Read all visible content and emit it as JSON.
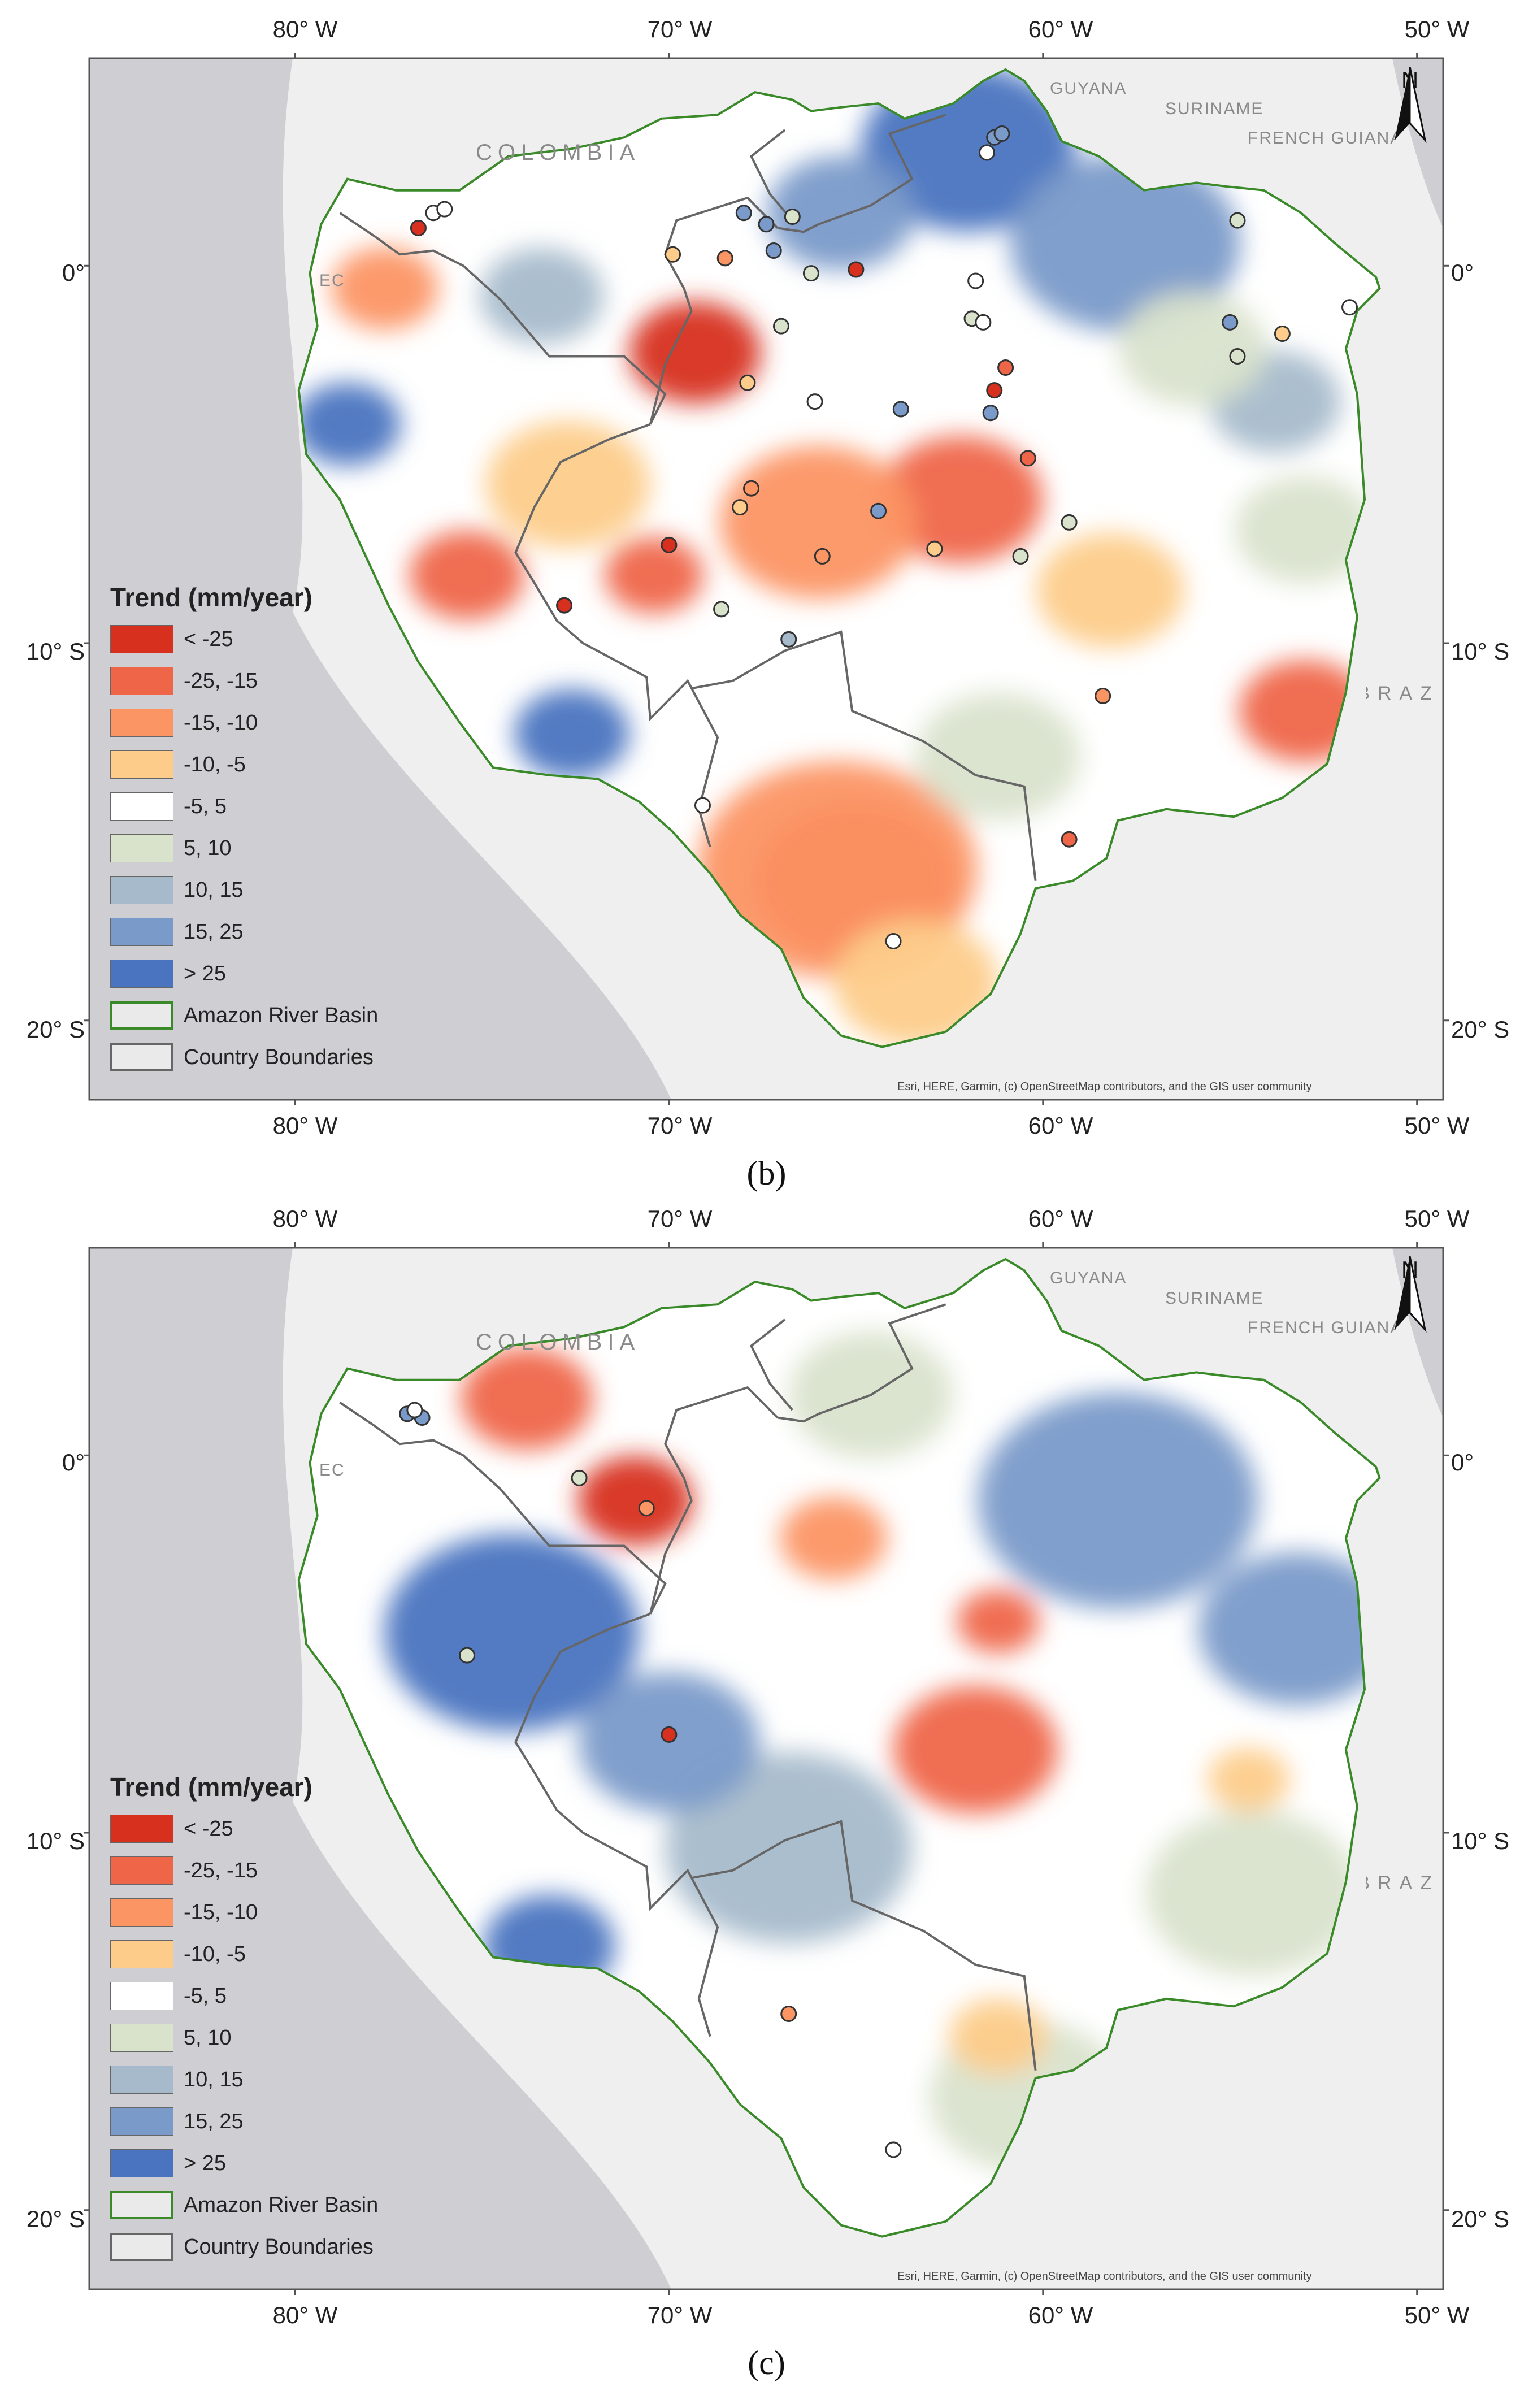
{
  "figure": {
    "panels": [
      {
        "id": "b",
        "caption": "(b)",
        "lon_labels": [
          "80° W",
          "70° W",
          "60° W",
          "50° W"
        ],
        "lat_labels": [
          "0°",
          "10° S",
          "20° S"
        ],
        "country_labels": [
          "COLOMBIA",
          "GUYANA",
          "SURINAME",
          "FRENCH GUIANA",
          "EC",
          "BRAZ"
        ],
        "north_label": "N",
        "attribution": "Esri, HERE, Garmin, (c) OpenStreetMap contributors, and the GIS user community"
      },
      {
        "id": "c",
        "caption": "(c)",
        "lon_labels": [
          "80° W",
          "70° W",
          "60° W",
          "50° W"
        ],
        "lat_labels": [
          "0°",
          "10° S",
          "20° S"
        ],
        "country_labels": [
          "COLOMBIA",
          "GUYANA",
          "SURINAME",
          "FRENCH GUIANA",
          "EC",
          "BRAZ"
        ],
        "north_label": "N",
        "attribution": "Esri, HERE, Garmin, (c) OpenStreetMap contributors, and the GIS user community"
      }
    ]
  },
  "legend": {
    "title": "Trend (mm/year)",
    "classes": [
      {
        "label": "< -25",
        "color": "#d7301f"
      },
      {
        "label": "-25, -15",
        "color": "#ef6548"
      },
      {
        "label": "-15, -10",
        "color": "#fc9564"
      },
      {
        "label": "-10, -5",
        "color": "#fdcc8a"
      },
      {
        "label": "-5, 5",
        "color": "#ffffff"
      },
      {
        "label": "5, 10",
        "color": "#d9e3cc"
      },
      {
        "label": "10, 15",
        "color": "#a7bacb"
      },
      {
        "label": "15, 25",
        "color": "#7a9ac9"
      },
      {
        "label": "> 25",
        "color": "#4a74c0"
      }
    ],
    "basin": {
      "label": "Amazon River Basin",
      "color": "#3a8a2a"
    },
    "boundaries": {
      "label": "Country Boundaries",
      "color": "#666666"
    }
  },
  "map_data": {
    "extent": {
      "lon": [
        -85.5,
        -49.3
      ],
      "lat": [
        5.5,
        -22.1
      ]
    },
    "basin_outline": [
      [
        -79.3,
        1.1
      ],
      [
        -78.6,
        2.3
      ],
      [
        -77.3,
        2.0
      ],
      [
        -75.6,
        2.0
      ],
      [
        -74.3,
        2.9
      ],
      [
        -72.6,
        3.1
      ],
      [
        -71.2,
        3.4
      ],
      [
        -70.2,
        3.9
      ],
      [
        -68.7,
        4.0
      ],
      [
        -67.7,
        4.6
      ],
      [
        -66.7,
        4.4
      ],
      [
        -66.2,
        4.1
      ],
      [
        -65.4,
        4.2
      ],
      [
        -64.4,
        4.3
      ],
      [
        -63.7,
        3.9
      ],
      [
        -62.4,
        4.3
      ],
      [
        -61.6,
        4.9
      ],
      [
        -61.0,
        5.2
      ],
      [
        -60.5,
        4.9
      ],
      [
        -59.9,
        4.1
      ],
      [
        -59.5,
        3.3
      ],
      [
        -58.5,
        2.9
      ],
      [
        -57.3,
        2.0
      ],
      [
        -55.9,
        2.2
      ],
      [
        -55.1,
        2.1
      ],
      [
        -54.1,
        2.0
      ],
      [
        -53.1,
        1.4
      ],
      [
        -52.2,
        0.6
      ],
      [
        -51.1,
        -0.3
      ],
      [
        -51.0,
        -0.6
      ],
      [
        -51.6,
        -1.2
      ],
      [
        -51.9,
        -2.2
      ],
      [
        -51.6,
        -3.4
      ],
      [
        -51.5,
        -4.8
      ],
      [
        -51.4,
        -6.2
      ],
      [
        -51.9,
        -7.8
      ],
      [
        -51.6,
        -9.3
      ],
      [
        -51.9,
        -11.3
      ],
      [
        -52.4,
        -13.2
      ],
      [
        -53.6,
        -14.1
      ],
      [
        -54.9,
        -14.6
      ],
      [
        -56.7,
        -14.4
      ],
      [
        -58.0,
        -14.7
      ],
      [
        -58.3,
        -15.7
      ],
      [
        -59.2,
        -16.3
      ],
      [
        -60.2,
        -16.5
      ],
      [
        -60.6,
        -17.7
      ],
      [
        -61.4,
        -19.3
      ],
      [
        -62.6,
        -20.3
      ],
      [
        -64.3,
        -20.7
      ],
      [
        -65.4,
        -20.4
      ],
      [
        -66.4,
        -19.4
      ],
      [
        -67.0,
        -18.1
      ],
      [
        -68.1,
        -17.2
      ],
      [
        -68.9,
        -16.1
      ],
      [
        -69.9,
        -15.0
      ],
      [
        -70.8,
        -14.2
      ],
      [
        -71.9,
        -13.6
      ],
      [
        -73.2,
        -13.5
      ],
      [
        -74.7,
        -13.3
      ],
      [
        -75.6,
        -12.1
      ],
      [
        -76.7,
        -10.5
      ],
      [
        -77.5,
        -9.0
      ],
      [
        -78.2,
        -7.5
      ],
      [
        -78.8,
        -6.2
      ],
      [
        -79.7,
        -5.0
      ],
      [
        -79.9,
        -3.3
      ],
      [
        -79.4,
        -1.6
      ],
      [
        -79.6,
        -0.2
      ]
    ],
    "country_borders": [
      [
        [
          -78.8,
          1.4
        ],
        [
          -77.9,
          0.8
        ],
        [
          -77.2,
          0.3
        ],
        [
          -76.3,
          0.4
        ],
        [
          -75.5,
          0.0
        ],
        [
          -74.5,
          -0.9
        ],
        [
          -73.2,
          -2.4
        ],
        [
          -71.2,
          -2.4
        ],
        [
          -70.1,
          -3.4
        ],
        [
          -70.5,
          -4.2
        ]
      ],
      [
        [
          -70.5,
          -4.2
        ],
        [
          -71.6,
          -4.6
        ],
        [
          -72.9,
          -5.2
        ],
        [
          -73.6,
          -6.4
        ],
        [
          -74.1,
          -7.6
        ],
        [
          -73.6,
          -8.4
        ],
        [
          -73.0,
          -9.4
        ],
        [
          -72.3,
          -10.0
        ],
        [
          -70.6,
          -10.9
        ],
        [
          -70.5,
          -12.0
        ],
        [
          -69.5,
          -11.0
        ],
        [
          -68.7,
          -12.5
        ],
        [
          -69.2,
          -14.4
        ],
        [
          -68.9,
          -15.4
        ]
      ],
      [
        [
          -69.4,
          -11.2
        ],
        [
          -68.3,
          -11.0
        ],
        [
          -66.9,
          -10.2
        ],
        [
          -65.4,
          -9.7
        ],
        [
          -65.1,
          -11.8
        ],
        [
          -63.2,
          -12.6
        ],
        [
          -61.8,
          -13.5
        ],
        [
          -60.5,
          -13.8
        ],
        [
          -60.2,
          -16.3
        ]
      ],
      [
        [
          -70.5,
          -4.2
        ],
        [
          -70.1,
          -2.6
        ],
        [
          -69.4,
          -1.2
        ],
        [
          -69.6,
          -0.6
        ],
        [
          -70.1,
          0.3
        ],
        [
          -69.8,
          1.2
        ],
        [
          -67.9,
          1.8
        ],
        [
          -67.1,
          1.0
        ]
      ],
      [
        [
          -67.1,
          1.0
        ],
        [
          -66.4,
          0.9
        ],
        [
          -66.0,
          1.1
        ],
        [
          -64.6,
          1.6
        ],
        [
          -63.5,
          2.3
        ],
        [
          -64.1,
          3.5
        ],
        [
          -62.6,
          4.0
        ]
      ],
      [
        [
          -66.9,
          3.6
        ],
        [
          -67.8,
          2.9
        ],
        [
          -67.3,
          1.9
        ],
        [
          -66.7,
          1.2
        ]
      ]
    ],
    "panel_b_colored_patches": [
      {
        "lon": -69.3,
        "lat": -2.3,
        "r": 1.6,
        "class": 0
      },
      {
        "lon": -65.0,
        "lat": -16.3,
        "r": 2.4,
        "class": 0
      },
      {
        "lon": -75.4,
        "lat": -8.2,
        "r": 1.4,
        "class": 1
      },
      {
        "lon": -62.2,
        "lat": -6.2,
        "r": 2.0,
        "class": 1
      },
      {
        "lon": -53.0,
        "lat": -11.8,
        "r": 1.6,
        "class": 1
      },
      {
        "lon": -70.4,
        "lat": -8.2,
        "r": 1.2,
        "class": 1
      },
      {
        "lon": -65.5,
        "lat": -16.0,
        "r": 3.4,
        "class": 2
      },
      {
        "lon": -66.0,
        "lat": -6.8,
        "r": 2.4,
        "class": 2
      },
      {
        "lon": -72.7,
        "lat": -5.8,
        "r": 2.0,
        "class": 3
      },
      {
        "lon": -63.4,
        "lat": -19.0,
        "r": 2.0,
        "class": 3
      },
      {
        "lon": -58.2,
        "lat": -8.6,
        "r": 1.8,
        "class": 3
      },
      {
        "lon": -77.6,
        "lat": -0.6,
        "r": 1.3,
        "class": 2
      },
      {
        "lon": -62.0,
        "lat": 3.1,
        "r": 2.6,
        "class": 8
      },
      {
        "lon": -57.8,
        "lat": 0.6,
        "r": 2.8,
        "class": 7
      },
      {
        "lon": -78.6,
        "lat": -4.2,
        "r": 1.3,
        "class": 8
      },
      {
        "lon": -72.6,
        "lat": -12.4,
        "r": 1.4,
        "class": 8
      },
      {
        "lon": -65.4,
        "lat": 1.4,
        "r": 1.8,
        "class": 7
      },
      {
        "lon": -73.4,
        "lat": -0.8,
        "r": 1.5,
        "class": 6
      },
      {
        "lon": -53.8,
        "lat": -3.6,
        "r": 1.6,
        "class": 6
      },
      {
        "lon": -56.0,
        "lat": -2.2,
        "r": 1.8,
        "class": 5
      },
      {
        "lon": -61.2,
        "lat": -13.0,
        "r": 2.0,
        "class": 5
      },
      {
        "lon": -53.0,
        "lat": -7.0,
        "r": 1.7,
        "class": 5
      }
    ],
    "panel_c_colored_patches": [
      {
        "lon": -74.2,
        "lat": -4.7,
        "r": 3.1,
        "class": 8
      },
      {
        "lon": -73.2,
        "lat": -13.0,
        "r": 1.6,
        "class": 8
      },
      {
        "lon": -70.9,
        "lat": -1.2,
        "r": 1.4,
        "class": 0
      },
      {
        "lon": -73.8,
        "lat": 1.5,
        "r": 1.6,
        "class": 1
      },
      {
        "lon": -61.8,
        "lat": -7.8,
        "r": 2.0,
        "class": 1
      },
      {
        "lon": -61.2,
        "lat": -4.4,
        "r": 1.0,
        "class": 1
      },
      {
        "lon": -65.6,
        "lat": -2.2,
        "r": 1.3,
        "class": 2
      },
      {
        "lon": -58.0,
        "lat": -1.2,
        "r": 3.4,
        "class": 7
      },
      {
        "lon": -53.2,
        "lat": -4.6,
        "r": 2.4,
        "class": 7
      },
      {
        "lon": -66.8,
        "lat": -10.4,
        "r": 3.0,
        "class": 6
      },
      {
        "lon": -60.4,
        "lat": -17.0,
        "r": 2.4,
        "class": 5
      },
      {
        "lon": -54.4,
        "lat": -11.6,
        "r": 2.6,
        "class": 5
      },
      {
        "lon": -70.0,
        "lat": -7.6,
        "r": 2.2,
        "class": 7
      },
      {
        "lon": -61.2,
        "lat": -15.4,
        "r": 1.2,
        "class": 3
      },
      {
        "lon": -54.5,
        "lat": -8.6,
        "r": 1.0,
        "class": 3
      },
      {
        "lon": -64.6,
        "lat": 1.6,
        "r": 2.0,
        "class": 5
      }
    ],
    "panel_b_stations": [
      {
        "lon": -76.7,
        "lat": 1.0,
        "class": 0
      },
      {
        "lon": -76.3,
        "lat": 1.4,
        "class": 4
      },
      {
        "lon": -76.0,
        "lat": 1.5,
        "class": 4
      },
      {
        "lon": -68.0,
        "lat": 1.4,
        "class": 7
      },
      {
        "lon": -67.4,
        "lat": 1.1,
        "class": 7
      },
      {
        "lon": -66.7,
        "lat": 1.3,
        "class": 5
      },
      {
        "lon": -69.9,
        "lat": 0.3,
        "class": 3
      },
      {
        "lon": -68.5,
        "lat": 0.2,
        "class": 2
      },
      {
        "lon": -67.2,
        "lat": 0.4,
        "class": 7
      },
      {
        "lon": -66.2,
        "lat": -0.2,
        "class": 5
      },
      {
        "lon": -65.0,
        "lat": -0.1,
        "class": 0
      },
      {
        "lon": -67.0,
        "lat": -1.6,
        "class": 5
      },
      {
        "lon": -67.9,
        "lat": -3.1,
        "class": 3
      },
      {
        "lon": -66.1,
        "lat": -3.6,
        "class": 4
      },
      {
        "lon": -61.3,
        "lat": 3.4,
        "class": 7
      },
      {
        "lon": -61.1,
        "lat": 3.5,
        "class": 7
      },
      {
        "lon": -61.5,
        "lat": 3.0,
        "class": 4
      },
      {
        "lon": -61.8,
        "lat": -0.4,
        "class": 4
      },
      {
        "lon": -61.9,
        "lat": -1.4,
        "class": 5
      },
      {
        "lon": -61.6,
        "lat": -1.5,
        "class": 4
      },
      {
        "lon": -61.0,
        "lat": -2.7,
        "class": 1
      },
      {
        "lon": -61.3,
        "lat": -3.3,
        "class": 0
      },
      {
        "lon": -63.8,
        "lat": -3.8,
        "class": 7
      },
      {
        "lon": -61.4,
        "lat": -3.9,
        "class": 7
      },
      {
        "lon": -54.8,
        "lat": 1.2,
        "class": 5
      },
      {
        "lon": -55.0,
        "lat": -1.5,
        "class": 7
      },
      {
        "lon": -54.8,
        "lat": -2.4,
        "class": 5
      },
      {
        "lon": -53.6,
        "lat": -1.8,
        "class": 3
      },
      {
        "lon": -51.8,
        "lat": -1.1,
        "class": 4
      },
      {
        "lon": -60.4,
        "lat": -5.1,
        "class": 1
      },
      {
        "lon": -67.8,
        "lat": -5.9,
        "class": 2
      },
      {
        "lon": -68.1,
        "lat": -6.4,
        "class": 3
      },
      {
        "lon": -64.4,
        "lat": -6.5,
        "class": 7
      },
      {
        "lon": -59.3,
        "lat": -6.8,
        "class": 5
      },
      {
        "lon": -62.9,
        "lat": -7.5,
        "class": 3
      },
      {
        "lon": -60.6,
        "lat": -7.7,
        "class": 5
      },
      {
        "lon": -70.0,
        "lat": -7.4,
        "class": 0
      },
      {
        "lon": -65.9,
        "lat": -7.7,
        "class": 2
      },
      {
        "lon": -72.8,
        "lat": -9.0,
        "class": 0
      },
      {
        "lon": -68.6,
        "lat": -9.1,
        "class": 5
      },
      {
        "lon": -66.8,
        "lat": -9.9,
        "class": 6
      },
      {
        "lon": -58.4,
        "lat": -11.4,
        "class": 2
      },
      {
        "lon": -69.1,
        "lat": -14.3,
        "class": 4
      },
      {
        "lon": -59.3,
        "lat": -15.2,
        "class": 1
      },
      {
        "lon": -64.0,
        "lat": -17.9,
        "class": 4
      }
    ],
    "panel_c_stations": [
      {
        "lon": -77.0,
        "lat": 1.1,
        "class": 7
      },
      {
        "lon": -76.6,
        "lat": 1.0,
        "class": 7
      },
      {
        "lon": -76.8,
        "lat": 1.2,
        "class": 4
      },
      {
        "lon": -72.4,
        "lat": -0.6,
        "class": 5
      },
      {
        "lon": -70.6,
        "lat": -1.4,
        "class": 2
      },
      {
        "lon": -75.4,
        "lat": -5.3,
        "class": 5
      },
      {
        "lon": -70.0,
        "lat": -7.4,
        "class": 0
      },
      {
        "lon": -66.8,
        "lat": -14.8,
        "class": 2
      },
      {
        "lon": -64.0,
        "lat": -18.4,
        "class": 4
      }
    ]
  }
}
